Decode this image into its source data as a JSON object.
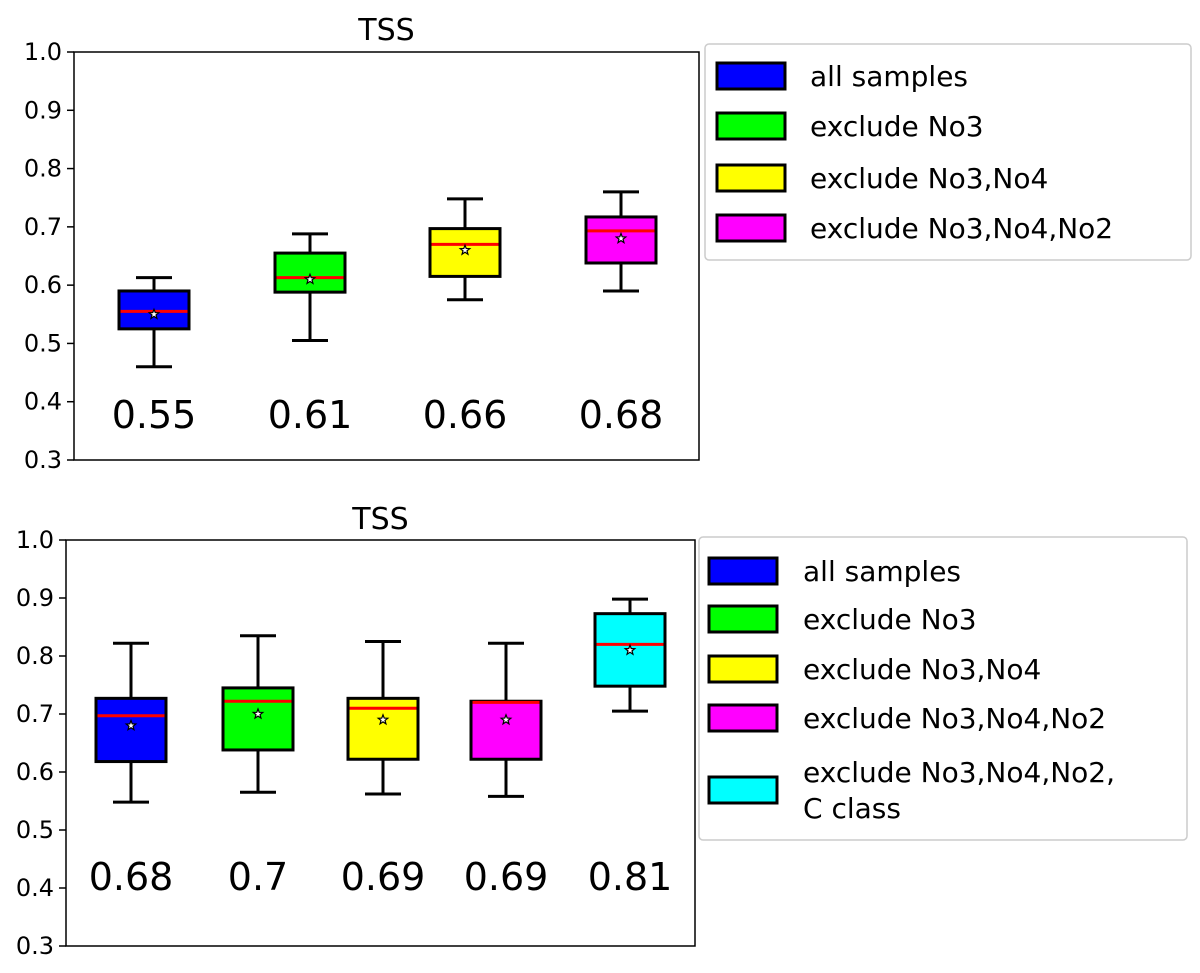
{
  "chart_data": [
    {
      "type": "boxplot",
      "title": "TSS",
      "ylim": [
        0.3,
        1.0
      ],
      "yticks": [
        "0.3",
        "0.4",
        "0.5",
        "0.6",
        "0.7",
        "0.8",
        "0.9",
        "1.0"
      ],
      "series": [
        {
          "name": "all samples",
          "color": "#0000ff",
          "whislo": 0.46,
          "q1": 0.525,
          "median": 0.555,
          "mean": 0.55,
          "q3": 0.59,
          "whishi": 0.613,
          "label": "0.55"
        },
        {
          "name": "exclude No3",
          "color": "#00ff00",
          "whislo": 0.505,
          "q1": 0.588,
          "median": 0.613,
          "mean": 0.61,
          "q3": 0.655,
          "whishi": 0.688,
          "label": "0.61"
        },
        {
          "name": "exclude No3,No4",
          "color": "#ffff00",
          "whislo": 0.575,
          "q1": 0.615,
          "median": 0.67,
          "mean": 0.66,
          "q3": 0.697,
          "whishi": 0.748,
          "label": "0.66"
        },
        {
          "name": "exclude No3,No4,No2",
          "color": "#ff00ff",
          "whislo": 0.59,
          "q1": 0.638,
          "median": 0.693,
          "mean": 0.68,
          "q3": 0.717,
          "whishi": 0.76,
          "label": "0.68"
        }
      ],
      "legend": [
        {
          "lines": [
            "all samples"
          ],
          "color": "#0000ff"
        },
        {
          "lines": [
            "exclude No3"
          ],
          "color": "#00ff00"
        },
        {
          "lines": [
            "exclude No3,No4"
          ],
          "color": "#ffff00"
        },
        {
          "lines": [
            "exclude No3,No4,No2"
          ],
          "color": "#ff00ff"
        }
      ]
    },
    {
      "type": "boxplot",
      "title": "TSS",
      "ylim": [
        0.3,
        1.0
      ],
      "yticks": [
        "0.3",
        "0.4",
        "0.5",
        "0.6",
        "0.7",
        "0.8",
        "0.9",
        "1.0"
      ],
      "series": [
        {
          "name": "all samples",
          "color": "#0000ff",
          "whislo": 0.548,
          "q1": 0.618,
          "median": 0.697,
          "mean": 0.68,
          "q3": 0.727,
          "whishi": 0.822,
          "label": "0.68"
        },
        {
          "name": "exclude No3",
          "color": "#00ff00",
          "whislo": 0.565,
          "q1": 0.638,
          "median": 0.722,
          "mean": 0.7,
          "q3": 0.745,
          "whishi": 0.835,
          "label": "0.7"
        },
        {
          "name": "exclude No3,No4",
          "color": "#ffff00",
          "whislo": 0.562,
          "q1": 0.622,
          "median": 0.71,
          "mean": 0.69,
          "q3": 0.727,
          "whishi": 0.825,
          "label": "0.69"
        },
        {
          "name": "exclude No3,No4,No2",
          "color": "#ff00ff",
          "whislo": 0.558,
          "q1": 0.622,
          "median": 0.72,
          "mean": 0.69,
          "q3": 0.722,
          "whishi": 0.822,
          "label": "0.69"
        },
        {
          "name": "exclude No3,No4,No2, C class",
          "color": "#00ffff",
          "whislo": 0.705,
          "q1": 0.748,
          "median": 0.82,
          "mean": 0.81,
          "q3": 0.873,
          "whishi": 0.898,
          "label": "0.81"
        }
      ],
      "legend": [
        {
          "lines": [
            "all samples"
          ],
          "color": "#0000ff"
        },
        {
          "lines": [
            "exclude No3"
          ],
          "color": "#00ff00"
        },
        {
          "lines": [
            "exclude No3,No4"
          ],
          "color": "#ffff00"
        },
        {
          "lines": [
            "exclude No3,No4,No2"
          ],
          "color": "#ff00ff"
        },
        {
          "lines": [
            "exclude No3,No4,No2,",
            "C class"
          ],
          "color": "#00ffff"
        }
      ]
    }
  ]
}
